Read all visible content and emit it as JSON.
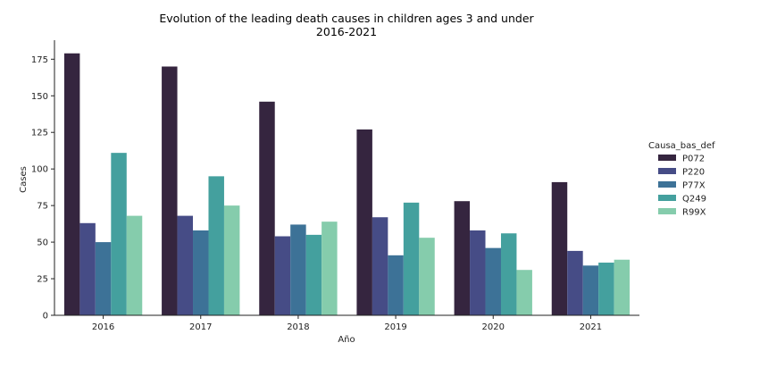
{
  "chart_data": {
    "type": "bar",
    "title": "Evolution of the leading death causes in children ages 3 and under",
    "subtitle": "2016-2021",
    "xlabel": "Año",
    "ylabel": "Cases",
    "ylim": [
      0,
      188
    ],
    "yticks": [
      0,
      25,
      50,
      75,
      100,
      125,
      150,
      175
    ],
    "categories": [
      "2016",
      "2017",
      "2018",
      "2019",
      "2020",
      "2021"
    ],
    "legend_title": "Causa_bas_def",
    "legend_position": "right",
    "grid": false,
    "series": [
      {
        "name": "P072",
        "color": "#35253f",
        "values": [
          179,
          170,
          146,
          127,
          78,
          91
        ]
      },
      {
        "name": "P220",
        "color": "#464c86",
        "values": [
          63,
          68,
          54,
          67,
          58,
          44
        ]
      },
      {
        "name": "P77X",
        "color": "#3d7297",
        "values": [
          50,
          58,
          62,
          41,
          46,
          34
        ]
      },
      {
        "name": "Q249",
        "color": "#44a09e",
        "values": [
          111,
          95,
          55,
          77,
          56,
          36
        ]
      },
      {
        "name": "R99X",
        "color": "#85ccac",
        "values": [
          68,
          75,
          64,
          53,
          31,
          38
        ]
      }
    ]
  }
}
